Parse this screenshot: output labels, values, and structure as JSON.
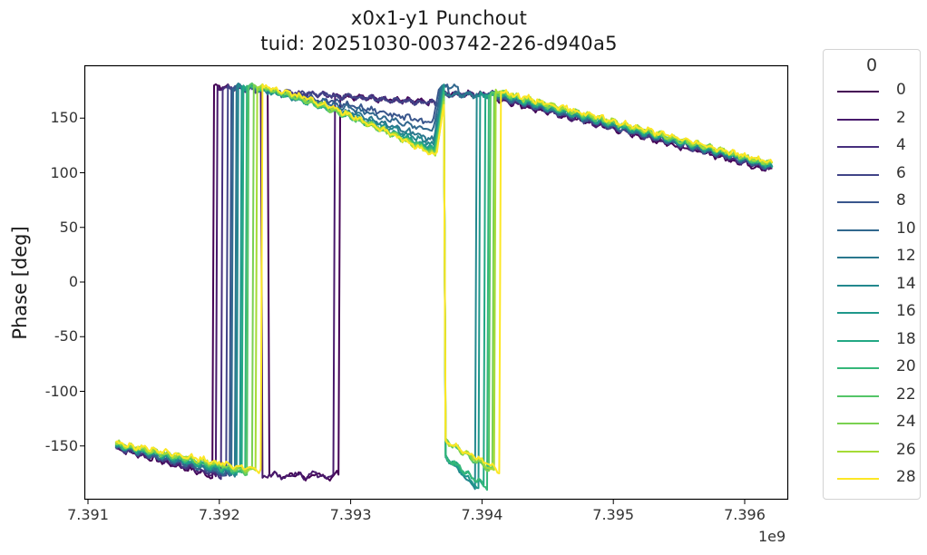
{
  "title": {
    "line1": "x0x1-y1 Punchout",
    "line2": "tuid: 20251030-003742-226-d940a5"
  },
  "axes": {
    "ylabel": "Phase [deg]",
    "xlabel": "",
    "x_offset_label": "1e9",
    "yticks": [
      "150",
      "100",
      "50",
      "0",
      "-50",
      "-100",
      "-150"
    ],
    "ytick_values": [
      150,
      100,
      50,
      0,
      -50,
      -100,
      -150
    ],
    "xticks": [
      "7.391",
      "7.392",
      "7.393",
      "7.394",
      "7.395",
      "7.396"
    ],
    "xtick_values": [
      7.391,
      7.392,
      7.393,
      7.394,
      7.395,
      7.396
    ]
  },
  "legend": {
    "title": "0",
    "items": [
      {
        "label": "0",
        "color": "#440154"
      },
      {
        "label": "2",
        "color": "#481a6c"
      },
      {
        "label": "4",
        "color": "#472f7d"
      },
      {
        "label": "6",
        "color": "#414487"
      },
      {
        "label": "8",
        "color": "#39568c"
      },
      {
        "label": "10",
        "color": "#31688e"
      },
      {
        "label": "12",
        "color": "#2a788e"
      },
      {
        "label": "14",
        "color": "#23888e"
      },
      {
        "label": "16",
        "color": "#1f988b"
      },
      {
        "label": "18",
        "color": "#22a884"
      },
      {
        "label": "20",
        "color": "#35b779"
      },
      {
        "label": "22",
        "color": "#54c568"
      },
      {
        "label": "24",
        "color": "#7ad151"
      },
      {
        "label": "26",
        "color": "#a5db36"
      },
      {
        "label": "28",
        "color": "#fde725"
      }
    ]
  },
  "chart_data": {
    "type": "line",
    "title": "x0x1-y1 Punchout\ntuid: 20251030-003742-226-d940a5",
    "xlabel": "",
    "ylabel": "Phase [deg]",
    "x_scale_note": "x values in units of 1e9",
    "xlim": [
      7.39098,
      7.39645
    ],
    "ylim": [
      -196,
      196
    ],
    "grid": false,
    "legend_position": "outside right",
    "legend_title": "0",
    "x_start": 7.39121,
    "x_end": 7.39621,
    "description": "Phase vs frequency for 15 series (legend 0..28 step 2, viridis colormap). Each trace starts near -152 deg at 7.39121e9, slopes down to ~-178 deg, wraps to +180 near 7.3920-7.3924e9, slopes down (lower-index series stay near 170-160 while higher-index dip to ~118 deg near 7.3936e9), jumps/wraps around 7.3937-7.3942e9, then decreases linearly to ~103-108 deg at 7.39621e9.",
    "series": [
      {
        "name": "0",
        "first_wrap": 7.39196,
        "extra_wraps": [
          7.39238,
          7.39292
        ],
        "dip_min": 168,
        "second_wrap": null,
        "end_value": 102
      },
      {
        "name": "2",
        "first_wrap": 7.39198,
        "extra_wraps": [
          7.39232,
          7.39288
        ],
        "dip_min": 166,
        "second_wrap": null,
        "end_value": 103
      },
      {
        "name": "4",
        "first_wrap": 7.39202,
        "extra_wraps": [],
        "dip_min": 160,
        "second_wrap": null,
        "end_value": 104
      },
      {
        "name": "6",
        "first_wrap": 7.39206,
        "extra_wraps": [],
        "dip_min": 150,
        "second_wrap": null,
        "end_value": 104
      },
      {
        "name": "8",
        "first_wrap": 7.39208,
        "extra_wraps": [],
        "dip_min": 145,
        "second_wrap": 7.39374,
        "end_value": 105
      },
      {
        "name": "10",
        "first_wrap": 7.3921,
        "extra_wraps": [],
        "dip_min": 138,
        "second_wrap": 7.39382,
        "end_value": 105
      },
      {
        "name": "12",
        "first_wrap": 7.39212,
        "extra_wraps": [],
        "dip_min": 130,
        "second_wrap": 7.3937,
        "end_value": 106
      },
      {
        "name": "14",
        "first_wrap": 7.39214,
        "extra_wraps": [],
        "dip_min": 126,
        "second_wrap": 7.39395,
        "end_value": 106
      },
      {
        "name": "16",
        "first_wrap": 7.39216,
        "extra_wraps": [],
        "dip_min": 122,
        "second_wrap": 7.39398,
        "end_value": 106
      },
      {
        "name": "18",
        "first_wrap": 7.39218,
        "extra_wraps": [],
        "dip_min": 120,
        "second_wrap": 7.39402,
        "end_value": 107
      },
      {
        "name": "20",
        "first_wrap": 7.3922,
        "extra_wraps": [],
        "dip_min": 119,
        "second_wrap": 7.39404,
        "end_value": 107
      },
      {
        "name": "22",
        "first_wrap": 7.39222,
        "extra_wraps": [],
        "dip_min": 118,
        "second_wrap": 7.39406,
        "end_value": 107
      },
      {
        "name": "24",
        "first_wrap": 7.39225,
        "extra_wraps": [],
        "dip_min": 117,
        "second_wrap": 7.39408,
        "end_value": 108
      },
      {
        "name": "26",
        "first_wrap": 7.39228,
        "extra_wraps": [],
        "dip_min": 116,
        "second_wrap": 7.3941,
        "end_value": 108
      },
      {
        "name": "28",
        "first_wrap": 7.39232,
        "extra_wraps": [],
        "dip_min": 115,
        "second_wrap": 7.39414,
        "end_value": 109
      }
    ]
  }
}
